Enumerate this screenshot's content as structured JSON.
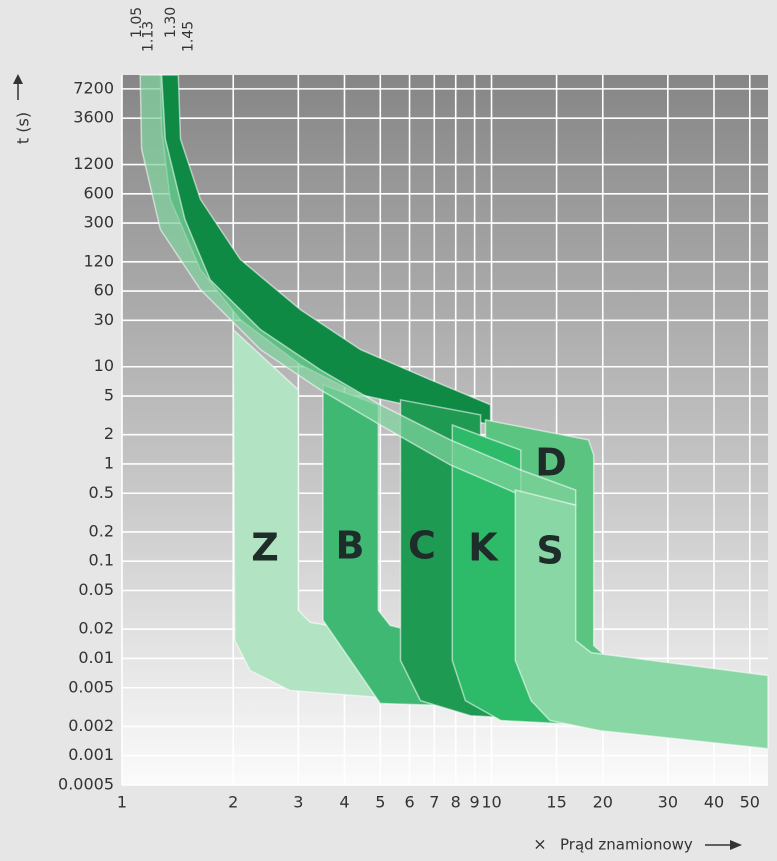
{
  "chart_data": {
    "type": "area",
    "y_label": "t (s)",
    "x_label_symbol": "×",
    "x_label": "Prąd znamionowy",
    "xscale": "log",
    "yscale": "log",
    "grid": true,
    "xlim": [
      1,
      56
    ],
    "ylim": [
      0.0005,
      10000
    ],
    "xticks": [
      1,
      2,
      3,
      4,
      5,
      6,
      7,
      8,
      9,
      10,
      15,
      20,
      30,
      40,
      50
    ],
    "yticks": [
      7200,
      3600,
      1200,
      600,
      300,
      120,
      60,
      30,
      10,
      5,
      2,
      1,
      0.5,
      0.2,
      0.1,
      0.05,
      0.02,
      0.01,
      0.005,
      0.002,
      0.001,
      0.0005
    ],
    "top_ticks": [
      1.05,
      1.13,
      {
        "value": 1.3,
        "label": "1.30"
      },
      1.45
    ],
    "thermal": [
      {
        "color": "#0e8a45",
        "opacity": 1,
        "x": [
          1.42,
          1.44,
          1.63,
          2.09,
          3.04,
          4.42,
          6.83,
          9.94,
          9.94,
          6.83,
          4.42,
          3.04,
          2.09,
          1.63,
          1.35,
          1.28,
          1.27
        ],
        "values": [
          10000,
          2190,
          527,
          127,
          38.7,
          15.0,
          7.35,
          4.06,
          2.52,
          3.6,
          5.14,
          10.5,
          30.5,
          100,
          527,
          2775,
          10000
        ]
      },
      {
        "color": "#7fd39c",
        "opacity": 0.72,
        "x": [
          1.12,
          1.13,
          1.27,
          1.63,
          2.37,
          3.44,
          5.0,
          7.74,
          12.0,
          16.9,
          16.9,
          12.0,
          7.74,
          5.0,
          3.44,
          2.37,
          1.73,
          1.48,
          1.31,
          1.28
        ],
        "values": [
          10000,
          1730,
          258,
          62.2,
          15.0,
          5.79,
          2.52,
          0.976,
          0.479,
          0.378,
          0.54,
          0.867,
          1.77,
          4.06,
          9.31,
          24.1,
          78.8,
          328,
          2190,
          10000
        ]
      }
    ],
    "bands": [
      {
        "name": "D",
        "color": "#5cc481",
        "x": [
          9.63,
          18.3,
          18.9,
          18.9,
          21.0,
          41.7,
          41.7,
          19.7,
          16.9,
          9.63
        ],
        "values": [
          2.84,
          1.77,
          1.24,
          0.0136,
          0.00953,
          0.00593,
          0.0023,
          0.00369,
          0.00953,
          0.0153
        ]
      },
      {
        "name": "Z",
        "color": "#b2e4c3",
        "x": [
          2.0,
          3.0,
          3.0,
          3.23,
          6.42,
          6.42,
          2.85,
          2.22,
          2.02
        ],
        "values": [
          24.1,
          5.79,
          0.0313,
          0.0235,
          0.0153,
          0.00369,
          0.00468,
          0.00752,
          0.0153
        ]
      },
      {
        "name": "B",
        "color": "#3fb874",
        "x": [
          3.5,
          4.94,
          4.94,
          5.32,
          7.74,
          7.74,
          5.0,
          3.5
        ],
        "values": [
          6.52,
          4.06,
          0.0313,
          0.0219,
          0.0153,
          0.00328,
          0.00344,
          0.0247
        ]
      },
      {
        "name": "C",
        "color": "#1f9a52",
        "x": [
          5.67,
          9.34,
          9.34,
          15.4,
          15.4,
          8.77,
          6.42,
          5.67
        ],
        "values": [
          4.57,
          3.2,
          0.00953,
          0.00369,
          0.0023,
          0.00258,
          0.00369,
          0.00953
        ]
      },
      {
        "name": "K",
        "color": "#2dbb69",
        "x": [
          7.83,
          12.0,
          12.0,
          19.7,
          19.7,
          10.6,
          8.5,
          7.83
        ],
        "values": [
          2.52,
          1.39,
          0.0153,
          0.00468,
          0.00204,
          0.0023,
          0.00369,
          0.00953
        ]
      },
      {
        "name": "S",
        "color": "#8ad7a6",
        "x": [
          11.6,
          16.9,
          16.9,
          18.6,
          56,
          56,
          19.7,
          14.4,
          12.8,
          11.6
        ],
        "values": [
          0.54,
          0.378,
          0.0153,
          0.0115,
          0.00668,
          0.00118,
          0.00181,
          0.0023,
          0.00369,
          0.00953
        ]
      }
    ]
  }
}
